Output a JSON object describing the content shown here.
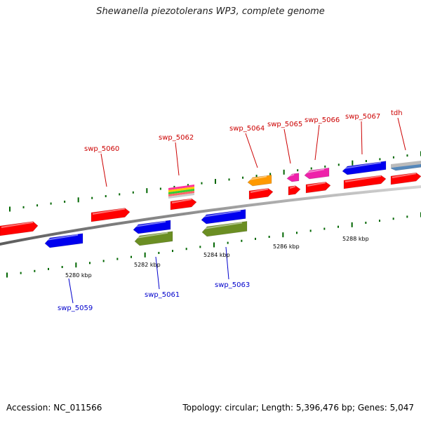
{
  "title": "Shewanella piezotolerans WP3, complete genome",
  "accession_text": "Accession: NC_011566",
  "summary_text": "Topology: circular; Length: 5,396,476 bp; Genes: 5,047",
  "colors": {
    "cds_forward": "#ff0000",
    "cds_reverse": "#0000ee",
    "olive": "#6b8e23",
    "orange": "#ff9900",
    "magenta": "#ee22aa",
    "gray_blue": "#5588bb",
    "label_forward": "#cc0000",
    "label_reverse": "#0000cc",
    "tick_green": "#006600",
    "backbone": "#888888"
  },
  "scale_labels": [
    "5280 kbp",
    "5282 kbp",
    "5284 kbp",
    "5286 kbp",
    "5288 kbp"
  ],
  "gene_labels_forward": [
    "swp_5060",
    "swp_5062",
    "swp_5064",
    "swp_5065",
    "swp_5066",
    "swp_5067",
    "tdh"
  ],
  "gene_labels_reverse": [
    "swp_5059",
    "swp_5061",
    "swp_5063"
  ]
}
